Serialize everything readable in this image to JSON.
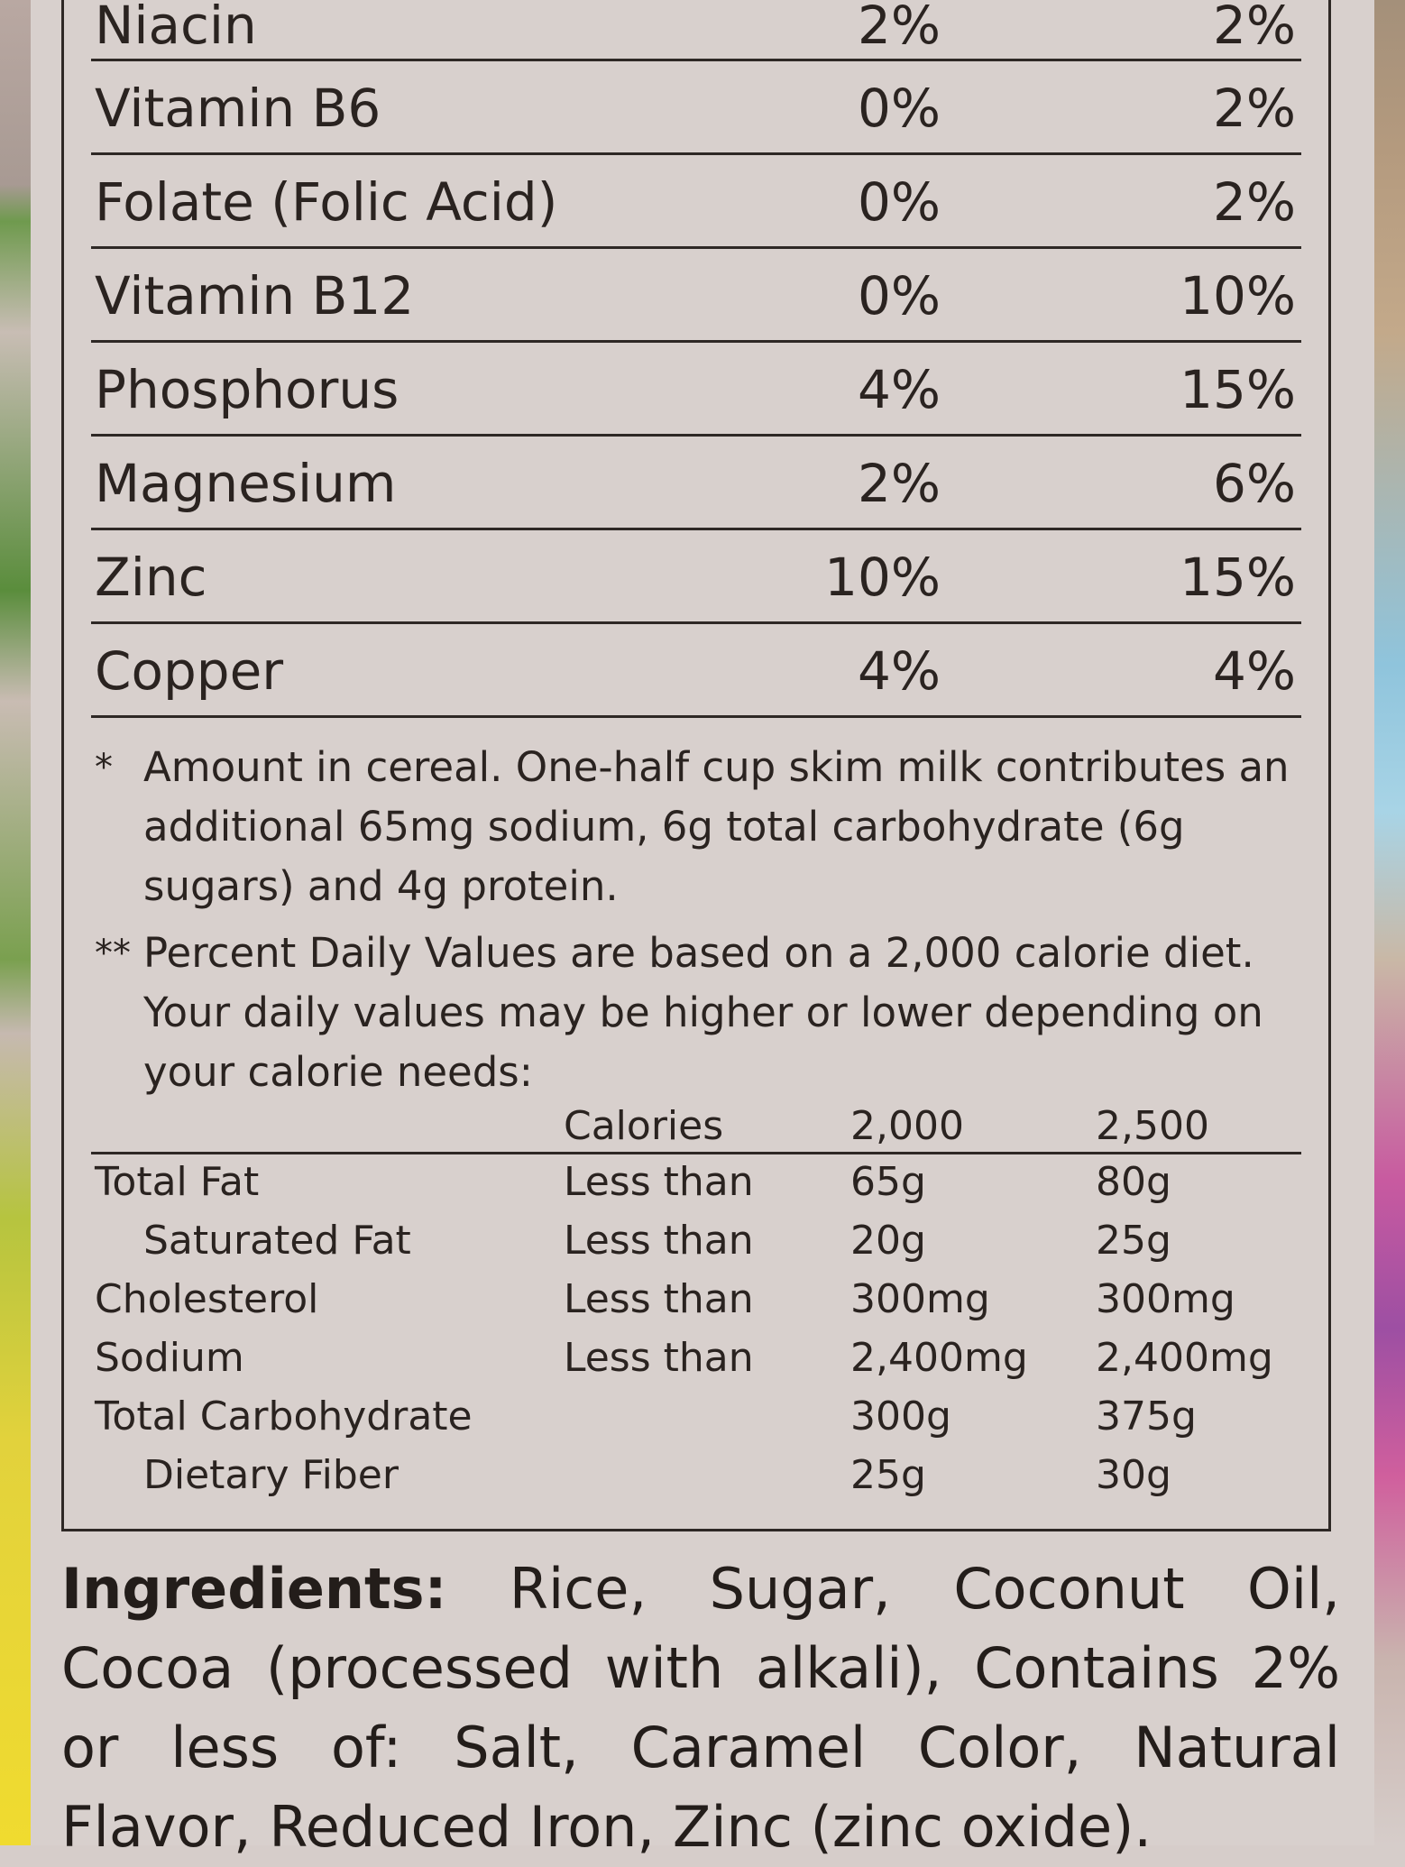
{
  "nutrients": [
    {
      "name": "Niacin",
      "cereal": "2%",
      "with_milk": "2%"
    },
    {
      "name": "Vitamin B6",
      "cereal": "0%",
      "with_milk": "2%"
    },
    {
      "name": "Folate (Folic Acid)",
      "cereal": "0%",
      "with_milk": "2%"
    },
    {
      "name": "Vitamin B12",
      "cereal": "0%",
      "with_milk": "10%"
    },
    {
      "name": "Phosphorus",
      "cereal": "4%",
      "with_milk": "15%"
    },
    {
      "name": "Magnesium",
      "cereal": "2%",
      "with_milk": "6%"
    },
    {
      "name": "Zinc",
      "cereal": "10%",
      "with_milk": "15%"
    },
    {
      "name": "Copper",
      "cereal": "4%",
      "with_milk": "4%"
    }
  ],
  "footnotes": {
    "note1_mark": "*",
    "note1_text": "Amount in cereal. One-half cup skim milk contributes an additional 65mg sodium, 6g total carbohydrate (6g sugars) and 4g protein.",
    "note2_mark": "**",
    "note2_text": "Percent Daily Values are based on a 2,000 calorie diet. Your daily values may be higher or lower depending on your calorie needs:"
  },
  "daily_values": {
    "header": {
      "label": "Calories",
      "col_a": "2,000",
      "col_b": "2,500"
    },
    "rows": [
      {
        "name": "Total Fat",
        "qualifier": "Less than",
        "a": "65g",
        "b": "80g"
      },
      {
        "name": "Saturated Fat",
        "qualifier": "Less than",
        "a": "20g",
        "b": "25g"
      },
      {
        "name": "Cholesterol",
        "qualifier": "Less than",
        "a": "300mg",
        "b": "300mg"
      },
      {
        "name": "Sodium",
        "qualifier": "Less than",
        "a": "2,400mg",
        "b": "2,400mg"
      },
      {
        "name": "Total Carbohydrate",
        "qualifier": "",
        "a": "300g",
        "b": "375g"
      },
      {
        "name": "Dietary Fiber",
        "qualifier": "",
        "a": "25g",
        "b": "30g"
      }
    ]
  },
  "ingredients": {
    "label": "Ingredients:",
    "text": "Rice, Sugar, Coconut Oil, Cocoa (processed with alkali), Contains 2% or less of: Salt, Caramel Color, Natural Flavor, Reduced Iron, Zinc (zinc oxide)."
  }
}
